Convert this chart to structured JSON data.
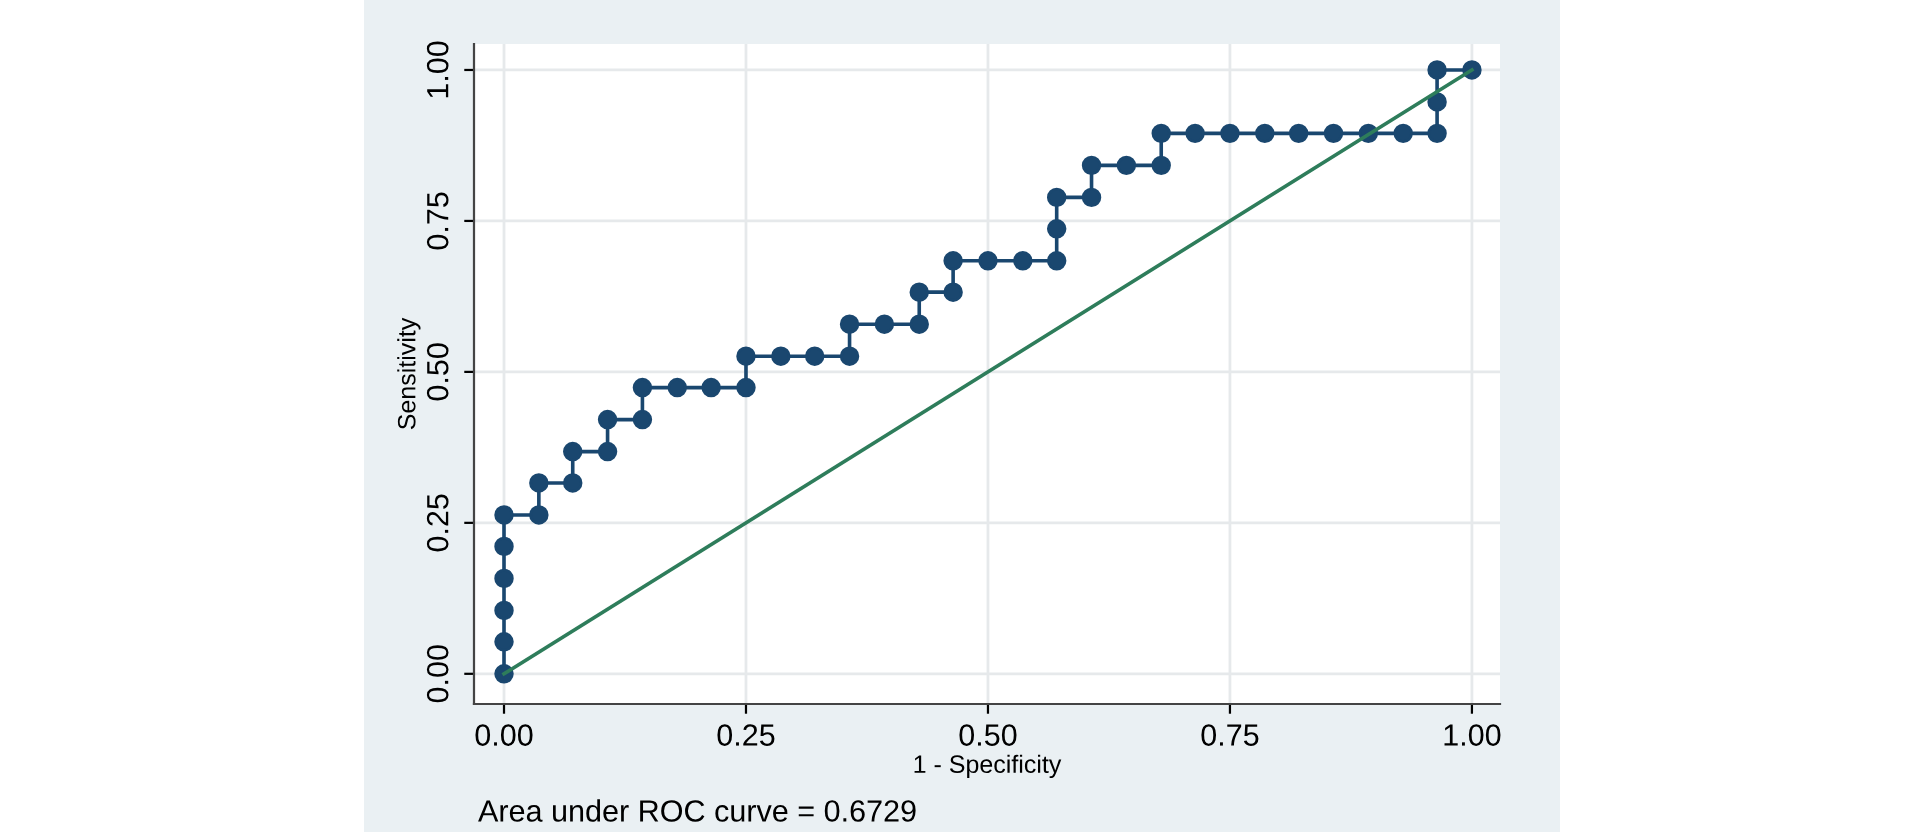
{
  "chart_data": {
    "type": "line",
    "xlabel": "1 - Specificity",
    "ylabel": "Sensitivity",
    "annotations": [
      "Area under ROC curve = 0.6729"
    ],
    "xlim": [
      -0.031,
      1.029
    ],
    "ylim": [
      -0.05,
      1.043
    ],
    "xticks": [
      {
        "value": 0,
        "label": "0.00"
      },
      {
        "value": 0.25,
        "label": "0.25"
      },
      {
        "value": 0.5,
        "label": "0.50"
      },
      {
        "value": 0.75,
        "label": "0.75"
      },
      {
        "value": 1,
        "label": "1.00"
      }
    ],
    "yticks": [
      {
        "value": 0,
        "label": "0.00"
      },
      {
        "value": 0.25,
        "label": "0.25"
      },
      {
        "value": 0.5,
        "label": "0.50"
      },
      {
        "value": 0.75,
        "label": "0.75"
      },
      {
        "value": 1,
        "label": "1.00"
      }
    ],
    "grid": true,
    "legend": false,
    "series": [
      {
        "color": "#1a476f",
        "marker": "circle",
        "line_style": "solid",
        "x": [
          0,
          0,
          0,
          0,
          0,
          0,
          0.036,
          0.036,
          0.071,
          0.071,
          0.107,
          0.107,
          0.143,
          0.143,
          0.179,
          0.214,
          0.25,
          0.25,
          0.286,
          0.321,
          0.357,
          0.357,
          0.393,
          0.429,
          0.429,
          0.464,
          0.464,
          0.5,
          0.536,
          0.571,
          0.571,
          0.571,
          0.607,
          0.607,
          0.643,
          0.679,
          0.679,
          0.714,
          0.75,
          0.786,
          0.821,
          0.857,
          0.893,
          0.929,
          0.964,
          0.964,
          0.964,
          1
        ],
        "values": [
          0,
          0.053,
          0.105,
          0.158,
          0.211,
          0.263,
          0.263,
          0.316,
          0.316,
          0.368,
          0.368,
          0.421,
          0.421,
          0.474,
          0.474,
          0.474,
          0.474,
          0.526,
          0.526,
          0.526,
          0.526,
          0.579,
          0.579,
          0.579,
          0.632,
          0.632,
          0.684,
          0.684,
          0.684,
          0.684,
          0.737,
          0.789,
          0.789,
          0.842,
          0.842,
          0.842,
          0.895,
          0.895,
          0.895,
          0.895,
          0.895,
          0.895,
          0.895,
          0.895,
          0.895,
          0.947,
          1,
          1
        ]
      },
      {
        "color": "#2e7d5b",
        "marker": "none",
        "line_style": "solid",
        "x": [
          0,
          1
        ],
        "values": [
          0,
          1
        ]
      }
    ]
  }
}
